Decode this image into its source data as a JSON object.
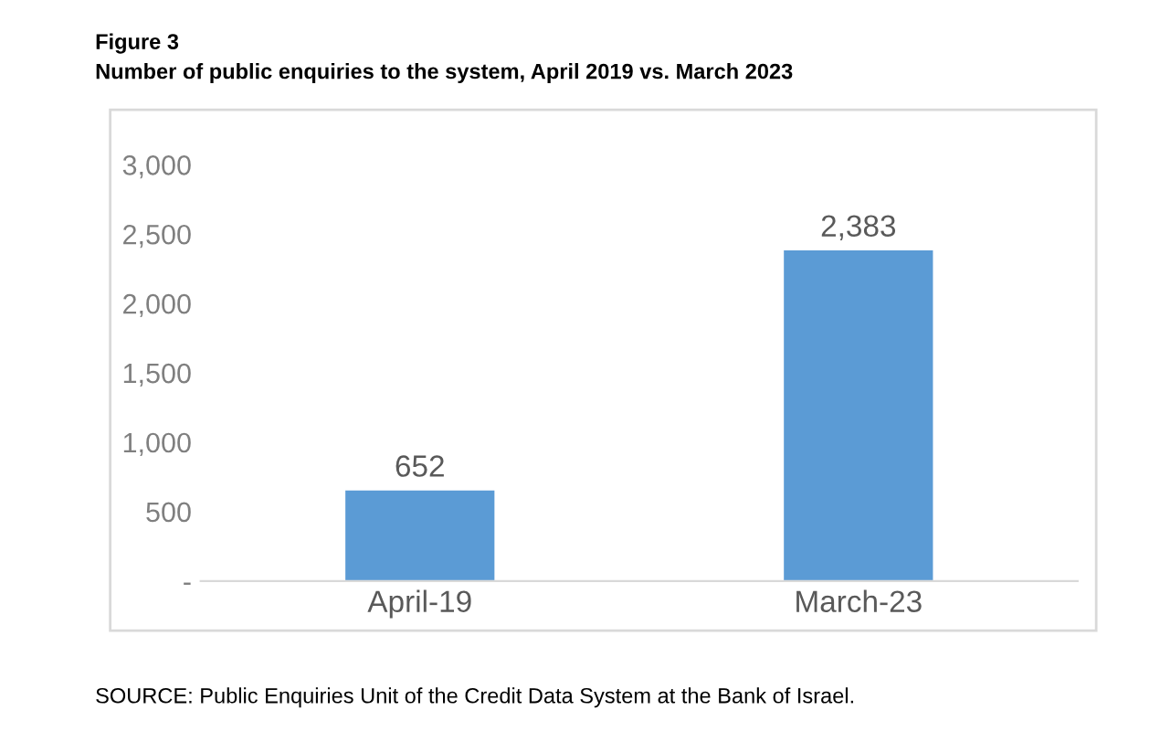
{
  "chart_data": {
    "type": "bar",
    "title": "Figure 3",
    "subtitle": "Number of public enquiries to the system, April 2019 vs. March 2023",
    "categories": [
      "April-19",
      "March-23"
    ],
    "values": [
      652,
      2383
    ],
    "color": "#5b9bd5",
    "ylim": [
      0,
      3000
    ],
    "yticks": [
      {
        "value": 0,
        "label": "-"
      },
      {
        "value": 500,
        "label": "500"
      },
      {
        "value": 1000,
        "label": "1,000"
      },
      {
        "value": 1500,
        "label": "1,500"
      },
      {
        "value": 2000,
        "label": "2,000"
      },
      {
        "value": 2500,
        "label": "2,500"
      },
      {
        "value": 3000,
        "label": "3,000"
      }
    ],
    "value_labels": [
      "652",
      "2,383"
    ],
    "grid": false,
    "annotations": [
      "SOURCE: Public Enquiries Unit of the Credit Data System at the Bank of Israel."
    ]
  }
}
